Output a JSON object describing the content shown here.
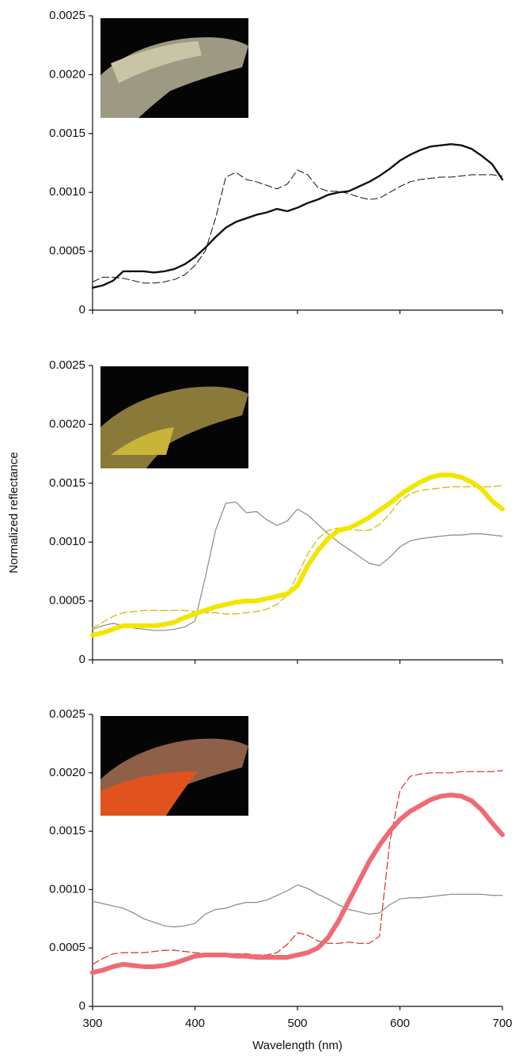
{
  "chart_data": [
    {
      "type": "line",
      "x": [
        300,
        310,
        320,
        330,
        340,
        350,
        360,
        370,
        380,
        390,
        400,
        410,
        420,
        430,
        440,
        450,
        460,
        470,
        480,
        490,
        500,
        510,
        520,
        530,
        540,
        550,
        560,
        570,
        580,
        590,
        600,
        610,
        620,
        630,
        640,
        650,
        660,
        670,
        680,
        690,
        700
      ],
      "xlim": [
        300,
        700
      ],
      "xticks": [
        300,
        400,
        500,
        600,
        700
      ],
      "xtick_labels": false,
      "ylim": [
        0,
        0.0025
      ],
      "yticks": [
        0,
        {
          "value": 0.0005,
          "label": "0.0005"
        },
        {
          "value": 0.001,
          "label": "0.0010"
        },
        {
          "value": 0.0015,
          "label": "0.0015"
        },
        {
          "value": 0.002,
          "label": "0.0020"
        },
        {
          "value": 0.0025,
          "label": "0.0025"
        }
      ],
      "series": [
        {
          "color": "#111111",
          "width": 2.4,
          "dash": false,
          "values": [
            0.00019,
            0.00021,
            0.00025,
            0.00033,
            0.00033,
            0.00033,
            0.00032,
            0.00033,
            0.00035,
            0.00039,
            0.00045,
            0.00053,
            0.00062,
            0.0007,
            0.00075,
            0.00078,
            0.00081,
            0.00083,
            0.00086,
            0.00084,
            0.00087,
            0.00091,
            0.00094,
            0.00098,
            0.001,
            0.00101,
            0.00105,
            0.00109,
            0.00114,
            0.0012,
            0.00127,
            0.00132,
            0.00136,
            0.00139,
            0.0014,
            0.00141,
            0.0014,
            0.00137,
            0.00131,
            0.00124,
            0.00111
          ]
        },
        {
          "color": "#111111",
          "width": 1,
          "dash": true,
          "values": [
            0.00024,
            0.00028,
            0.00028,
            0.00027,
            0.00025,
            0.00023,
            0.00023,
            0.00024,
            0.00026,
            0.0003,
            0.00038,
            0.0005,
            0.00078,
            0.00113,
            0.00117,
            0.00111,
            0.00109,
            0.00106,
            0.00103,
            0.00107,
            0.00119,
            0.00115,
            0.00104,
            0.00101,
            0.00101,
            0.00099,
            0.00096,
            0.00094,
            0.00095,
            0.001,
            0.00105,
            0.00109,
            0.00111,
            0.00112,
            0.00113,
            0.00113,
            0.00114,
            0.00115,
            0.00115,
            0.00115,
            0.00114
          ]
        }
      ]
    },
    {
      "type": "line",
      "x": [
        300,
        310,
        320,
        330,
        340,
        350,
        360,
        370,
        380,
        390,
        400,
        410,
        420,
        430,
        440,
        450,
        460,
        470,
        480,
        490,
        500,
        510,
        520,
        530,
        540,
        550,
        560,
        570,
        580,
        590,
        600,
        610,
        620,
        630,
        640,
        650,
        660,
        670,
        680,
        690,
        700
      ],
      "xlim": [
        300,
        700
      ],
      "xticks": [
        300,
        400,
        500,
        600,
        700
      ],
      "xtick_labels": false,
      "ylim": [
        0,
        0.0025
      ],
      "yticks": [
        0,
        {
          "value": 0.0005,
          "label": "0.0005"
        },
        {
          "value": 0.001,
          "label": "0.0010"
        },
        {
          "value": 0.0015,
          "label": "0.0015"
        },
        {
          "value": 0.002,
          "label": "0.0020"
        },
        {
          "value": 0.0025,
          "label": "0.0025"
        }
      ],
      "ylabel": "Normalized reflectance",
      "series": [
        {
          "color": "#888888",
          "width": 1.2,
          "dash": false,
          "values": [
            0.00026,
            0.00029,
            0.00031,
            0.00029,
            0.00027,
            0.00026,
            0.00025,
            0.00025,
            0.00026,
            0.00028,
            0.00033,
            0.0007,
            0.0011,
            0.00133,
            0.00134,
            0.00125,
            0.00126,
            0.00119,
            0.00114,
            0.00118,
            0.00128,
            0.00123,
            0.00115,
            0.00107,
            0.001,
            0.00094,
            0.00088,
            0.00082,
            0.0008,
            0.00087,
            0.00096,
            0.00101,
            0.00103,
            0.00104,
            0.00105,
            0.00106,
            0.00106,
            0.00107,
            0.00107,
            0.00106,
            0.00105
          ]
        },
        {
          "color": "#d4b400",
          "width": 1.2,
          "dash": true,
          "values": [
            0.00027,
            0.00032,
            0.00037,
            0.0004,
            0.00041,
            0.00042,
            0.00042,
            0.00042,
            0.00042,
            0.00042,
            0.00041,
            0.0004,
            0.0004,
            0.00039,
            0.00039,
            0.0004,
            0.00041,
            0.00043,
            0.00047,
            0.00055,
            0.00072,
            0.0009,
            0.00103,
            0.0011,
            0.00112,
            0.00111,
            0.0011,
            0.0011,
            0.00115,
            0.00124,
            0.00135,
            0.00141,
            0.00144,
            0.00145,
            0.00146,
            0.00147,
            0.00147,
            0.00147,
            0.00147,
            0.00147,
            0.00148
          ]
        },
        {
          "color": "#f2e600",
          "width": 6,
          "dash": false,
          "values": [
            0.00021,
            0.00023,
            0.00026,
            0.00029,
            0.00029,
            0.00029,
            0.00029,
            0.0003,
            0.00032,
            0.00036,
            0.00039,
            0.00042,
            0.00045,
            0.00047,
            0.00049,
            0.0005,
            0.0005,
            0.00052,
            0.00054,
            0.00056,
            0.00063,
            0.0008,
            0.00093,
            0.00103,
            0.0011,
            0.00112,
            0.00116,
            0.00121,
            0.00127,
            0.00133,
            0.0014,
            0.00146,
            0.00151,
            0.00155,
            0.00157,
            0.00157,
            0.00155,
            0.00151,
            0.00145,
            0.00135,
            0.00128
          ]
        }
      ]
    },
    {
      "type": "line",
      "x": [
        300,
        310,
        320,
        330,
        340,
        350,
        360,
        370,
        380,
        390,
        400,
        410,
        420,
        430,
        440,
        450,
        460,
        470,
        480,
        490,
        500,
        510,
        520,
        530,
        540,
        550,
        560,
        570,
        580,
        590,
        600,
        610,
        620,
        630,
        640,
        650,
        660,
        670,
        680,
        690,
        700
      ],
      "xlim": [
        300,
        700
      ],
      "xticks": [
        300,
        400,
        500,
        600,
        700
      ],
      "xtick_labels": true,
      "xlabel": "Wavelength (nm)",
      "ylim": [
        0,
        0.0025
      ],
      "yticks": [
        0,
        {
          "value": 0.0005,
          "label": "0.0005"
        },
        {
          "value": 0.001,
          "label": "0.0010"
        },
        {
          "value": 0.0015,
          "label": "0.0015"
        },
        {
          "value": 0.002,
          "label": "0.0020"
        },
        {
          "value": 0.0025,
          "label": "0.0025"
        }
      ],
      "series": [
        {
          "color": "#888888",
          "width": 1.2,
          "dash": false,
          "values": [
            0.0009,
            0.00088,
            0.00086,
            0.00084,
            0.0008,
            0.00075,
            0.00072,
            0.00069,
            0.00068,
            0.00069,
            0.00071,
            0.00079,
            0.00083,
            0.00084,
            0.00087,
            0.00089,
            0.00089,
            0.00091,
            0.00095,
            0.00099,
            0.00104,
            0.00101,
            0.00096,
            0.00092,
            0.00087,
            0.00083,
            0.00081,
            0.00079,
            0.0008,
            0.00087,
            0.00092,
            0.00093,
            0.00093,
            0.00094,
            0.00095,
            0.00096,
            0.00096,
            0.00096,
            0.00096,
            0.00095,
            0.00095
          ]
        },
        {
          "color": "#dd2a2a",
          "width": 1.2,
          "dash": true,
          "values": [
            0.00036,
            0.00041,
            0.00045,
            0.00046,
            0.00046,
            0.00046,
            0.00047,
            0.00048,
            0.00048,
            0.00047,
            0.00046,
            0.00045,
            0.00044,
            0.00045,
            0.00045,
            0.00045,
            0.00044,
            0.00044,
            0.00046,
            0.00053,
            0.00063,
            0.00061,
            0.00056,
            0.00054,
            0.00054,
            0.00055,
            0.00054,
            0.00054,
            0.0006,
            0.0014,
            0.00185,
            0.00197,
            0.00199,
            0.002,
            0.002,
            0.002,
            0.00201,
            0.00201,
            0.00201,
            0.00201,
            0.00202
          ]
        },
        {
          "color": "#ee6b74",
          "width": 6,
          "dash": false,
          "values": [
            0.00029,
            0.00031,
            0.00034,
            0.00036,
            0.00035,
            0.00034,
            0.00034,
            0.00035,
            0.00037,
            0.0004,
            0.00043,
            0.00044,
            0.00044,
            0.00044,
            0.00043,
            0.00043,
            0.00042,
            0.00042,
            0.00042,
            0.00042,
            0.00044,
            0.00046,
            0.0005,
            0.00059,
            0.00073,
            0.0009,
            0.00107,
            0.00124,
            0.00138,
            0.0015,
            0.0016,
            0.00167,
            0.00172,
            0.00177,
            0.0018,
            0.00181,
            0.0018,
            0.00176,
            0.00168,
            0.00157,
            0.00147
          ]
        }
      ]
    }
  ]
}
